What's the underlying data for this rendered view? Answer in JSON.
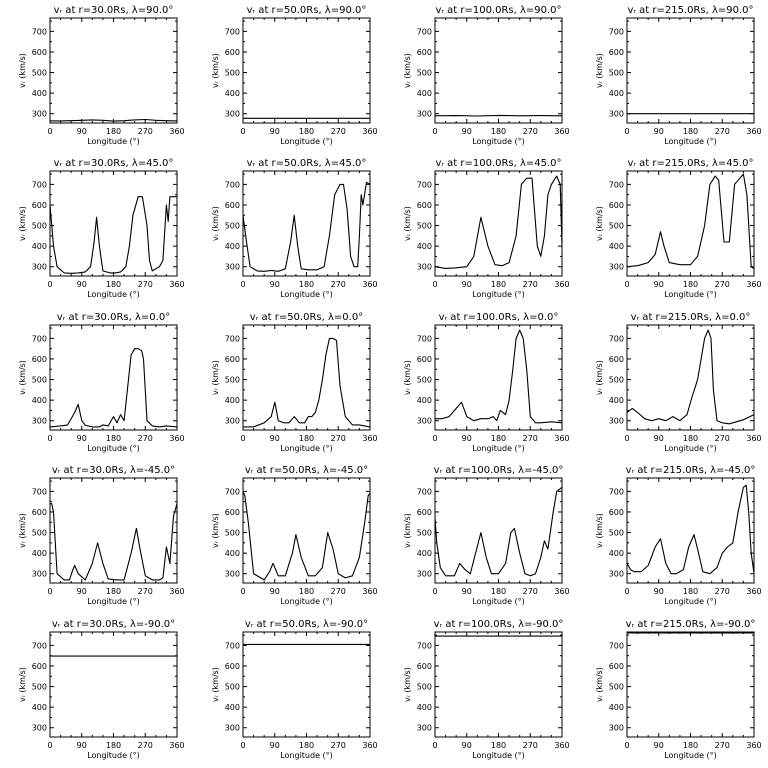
{
  "figure": {
    "xlabel": "Longitude (°)",
    "ylabel": "vᵣ (km/s)",
    "xticks": [
      "0",
      "90",
      "180",
      "270",
      "360"
    ],
    "yticks": [
      "300",
      "400",
      "500",
      "600",
      "700"
    ],
    "xlim": [
      0,
      360
    ],
    "ylim": [
      255,
      765
    ]
  },
  "chart_data": [
    {
      "type": "line",
      "title": "vᵣ at r=30.0Rs, λ=90.0°",
      "x": [
        0,
        30,
        60,
        90,
        120,
        150,
        180,
        210,
        240,
        270,
        300,
        330,
        360
      ],
      "y": [
        265,
        265,
        266,
        268,
        270,
        268,
        264,
        266,
        270,
        272,
        268,
        266,
        265
      ]
    },
    {
      "type": "line",
      "title": "vᵣ at r=50.0Rs, λ=90.0°",
      "x": [
        0,
        90,
        180,
        270,
        360
      ],
      "y": [
        278,
        278,
        278,
        278,
        278
      ]
    },
    {
      "type": "line",
      "title": "vᵣ at r=100.0Rs, λ=90.0°",
      "x": [
        0,
        60,
        120,
        180,
        240,
        300,
        360
      ],
      "y": [
        290,
        291,
        289,
        292,
        290,
        291,
        290
      ]
    },
    {
      "type": "line",
      "title": "vᵣ at r=215.0Rs, λ=90.0°",
      "x": [
        0,
        90,
        180,
        270,
        360
      ],
      "y": [
        300,
        300,
        300,
        300,
        300
      ]
    },
    {
      "type": "line",
      "title": "vᵣ at r=30.0Rs, λ=45.0°",
      "x": [
        0,
        5,
        10,
        20,
        40,
        60,
        80,
        100,
        115,
        125,
        132,
        140,
        150,
        160,
        170,
        185,
        200,
        215,
        225,
        235,
        250,
        262,
        275,
        282,
        290,
        300,
        310,
        320,
        330,
        335,
        340,
        350,
        360
      ],
      "y": [
        600,
        500,
        400,
        300,
        270,
        268,
        270,
        275,
        300,
        420,
        540,
        400,
        280,
        275,
        270,
        270,
        275,
        300,
        400,
        550,
        640,
        640,
        500,
        330,
        280,
        290,
        300,
        330,
        600,
        520,
        640,
        640,
        640
      ]
    },
    {
      "type": "line",
      "title": "vᵣ at r=50.0Rs, λ=45.0°",
      "x": [
        0,
        10,
        20,
        40,
        60,
        80,
        100,
        120,
        135,
        145,
        155,
        165,
        185,
        210,
        230,
        245,
        260,
        275,
        285,
        295,
        305,
        315,
        325,
        330,
        335,
        340,
        350,
        360
      ],
      "y": [
        550,
        420,
        300,
        280,
        278,
        282,
        278,
        290,
        420,
        550,
        400,
        290,
        285,
        285,
        300,
        450,
        650,
        700,
        700,
        580,
        350,
        300,
        300,
        450,
        650,
        600,
        710,
        700
      ]
    },
    {
      "type": "line",
      "title": "vᵣ at r=100.0Rs, λ=45.0°",
      "x": [
        0,
        30,
        60,
        90,
        110,
        130,
        150,
        170,
        190,
        210,
        230,
        245,
        260,
        275,
        290,
        300,
        310,
        320,
        330,
        345,
        355,
        360
      ],
      "y": [
        300,
        292,
        295,
        300,
        350,
        540,
        400,
        310,
        305,
        320,
        450,
        700,
        730,
        730,
        400,
        350,
        450,
        650,
        700,
        740,
        700,
        400
      ]
    },
    {
      "type": "line",
      "title": "vᵣ at r=215.0Rs, λ=45.0°",
      "x": [
        0,
        30,
        60,
        80,
        95,
        105,
        120,
        150,
        180,
        200,
        220,
        235,
        250,
        260,
        275,
        290,
        305,
        315,
        330,
        340,
        352,
        360
      ],
      "y": [
        300,
        305,
        320,
        360,
        470,
        400,
        320,
        310,
        310,
        350,
        500,
        700,
        740,
        720,
        420,
        420,
        700,
        720,
        750,
        650,
        300,
        290
      ]
    },
    {
      "type": "line",
      "title": "vᵣ at r=30.0Rs, λ=0.0°",
      "x": [
        0,
        30,
        50,
        70,
        80,
        90,
        100,
        120,
        140,
        150,
        165,
        180,
        190,
        200,
        210,
        220,
        230,
        240,
        250,
        260,
        265,
        275,
        290,
        310,
        330,
        360
      ],
      "y": [
        270,
        275,
        280,
        340,
        380,
        300,
        278,
        270,
        270,
        280,
        275,
        320,
        290,
        330,
        300,
        460,
        620,
        650,
        650,
        640,
        600,
        300,
        275,
        270,
        275,
        270
      ]
    },
    {
      "type": "line",
      "title": "vᵣ at r=50.0Rs, λ=0.0°",
      "x": [
        0,
        30,
        60,
        80,
        90,
        100,
        115,
        130,
        145,
        160,
        175,
        185,
        195,
        205,
        215,
        225,
        235,
        245,
        255,
        265,
        275,
        290,
        310,
        330,
        360
      ],
      "y": [
        270,
        270,
        290,
        320,
        390,
        300,
        290,
        290,
        320,
        290,
        290,
        320,
        320,
        340,
        400,
        500,
        620,
        700,
        700,
        690,
        470,
        320,
        280,
        280,
        270
      ]
    },
    {
      "type": "line",
      "title": "vᵣ at r=100.0Rs, λ=0.0°",
      "x": [
        0,
        20,
        40,
        60,
        75,
        90,
        110,
        130,
        150,
        165,
        175,
        185,
        200,
        210,
        220,
        230,
        240,
        250,
        260,
        270,
        285,
        300,
        330,
        360
      ],
      "y": [
        310,
        310,
        320,
        360,
        390,
        320,
        300,
        310,
        310,
        320,
        300,
        350,
        330,
        400,
        540,
        700,
        740,
        700,
        550,
        320,
        290,
        290,
        295,
        290
      ]
    },
    {
      "type": "line",
      "title": "vᵣ at r=215.0Rs, λ=0.0°",
      "x": [
        0,
        15,
        30,
        50,
        70,
        90,
        110,
        130,
        150,
        170,
        185,
        200,
        210,
        220,
        230,
        238,
        245,
        255,
        270,
        290,
        310,
        330,
        360
      ],
      "y": [
        340,
        360,
        340,
        310,
        300,
        310,
        300,
        320,
        300,
        330,
        420,
        500,
        600,
        700,
        740,
        700,
        450,
        300,
        290,
        285,
        295,
        305,
        330
      ]
    },
    {
      "type": "line",
      "title": "vᵣ at r=30.0Rs, λ=-45.0°",
      "x": [
        0,
        5,
        10,
        20,
        40,
        55,
        65,
        70,
        80,
        100,
        120,
        135,
        150,
        165,
        190,
        210,
        230,
        245,
        255,
        270,
        290,
        310,
        320,
        330,
        340,
        350,
        360
      ],
      "y": [
        640,
        640,
        600,
        300,
        270,
        270,
        320,
        340,
        300,
        270,
        350,
        450,
        350,
        275,
        270,
        270,
        400,
        520,
        420,
        290,
        270,
        270,
        280,
        430,
        350,
        580,
        640
      ]
    },
    {
      "type": "line",
      "title": "vᵣ at r=50.0Rs, λ=-45.0°",
      "x": [
        0,
        5,
        15,
        30,
        60,
        75,
        85,
        100,
        120,
        140,
        150,
        165,
        185,
        205,
        225,
        240,
        255,
        270,
        290,
        310,
        330,
        345,
        355,
        360
      ],
      "y": [
        700,
        680,
        550,
        300,
        270,
        310,
        350,
        290,
        290,
        400,
        490,
        380,
        290,
        290,
        330,
        500,
        420,
        300,
        280,
        290,
        380,
        550,
        680,
        690
      ]
    },
    {
      "type": "line",
      "title": "vᵣ at r=100.0Rs, λ=-45.0°",
      "x": [
        0,
        5,
        15,
        30,
        55,
        70,
        85,
        100,
        115,
        130,
        145,
        160,
        180,
        200,
        215,
        225,
        240,
        255,
        270,
        285,
        300,
        310,
        320,
        335,
        345,
        360
      ],
      "y": [
        570,
        450,
        330,
        290,
        290,
        350,
        320,
        300,
        400,
        500,
        380,
        300,
        300,
        350,
        500,
        520,
        400,
        300,
        290,
        300,
        380,
        460,
        420,
        600,
        700,
        720
      ]
    },
    {
      "type": "line",
      "title": "vᵣ at r=215.0Rs, λ=-45.0°",
      "x": [
        0,
        10,
        20,
        40,
        60,
        80,
        95,
        110,
        125,
        140,
        160,
        175,
        190,
        200,
        215,
        235,
        255,
        270,
        285,
        300,
        315,
        330,
        338,
        345,
        352,
        360
      ],
      "y": [
        350,
        320,
        310,
        310,
        340,
        430,
        470,
        350,
        300,
        300,
        320,
        430,
        490,
        420,
        310,
        300,
        330,
        400,
        430,
        450,
        600,
        720,
        730,
        600,
        400,
        300
      ]
    },
    {
      "type": "line",
      "title": "vᵣ at r=30.0Rs, λ=-90.0°",
      "x": [
        0,
        90,
        180,
        270,
        360
      ],
      "y": [
        648,
        648,
        648,
        648,
        648
      ]
    },
    {
      "type": "line",
      "title": "vᵣ at r=50.0Rs, λ=-90.0°",
      "x": [
        0,
        90,
        180,
        270,
        360
      ],
      "y": [
        705,
        705,
        705,
        705,
        705
      ]
    },
    {
      "type": "line",
      "title": "vᵣ at r=100.0Rs, λ=-90.0°",
      "x": [
        0,
        90,
        180,
        270,
        360
      ],
      "y": [
        745,
        745,
        745,
        745,
        745
      ]
    },
    {
      "type": "line",
      "title": "vᵣ at r=215.0Rs, λ=-90.0°",
      "x": [
        0,
        90,
        180,
        270,
        360
      ],
      "y": [
        760,
        760,
        760,
        760,
        760
      ]
    }
  ]
}
